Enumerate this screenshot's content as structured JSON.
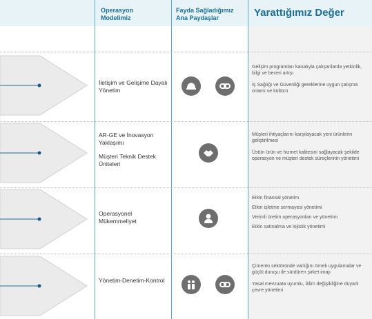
{
  "header": {
    "col_model": "Operasyon Modelimiz",
    "col_stakeholders": "Fayda Sağladığımız Ana Paydaşlar",
    "col_value": "Yarattığımız Değer"
  },
  "rows": [
    {
      "model": [
        "İletişim ve Gelişime Dayalı Yönetim"
      ],
      "icons": [
        "employee-helmet-icon",
        "chain-link-icon"
      ],
      "values": [
        "Gelişim programları kanalıyla çalışanlarda yetkinlik, bilgi ve beceri artışı",
        "İş Sağlığı ve Güvenliği gereklerine uygun çalışma ortamı ve kültürü"
      ]
    },
    {
      "model": [
        "AR-GE ve İnovasyon Yaklaşımı",
        "Müşteri Teknik Destek Üniteleri"
      ],
      "icons": [
        "handshake-icon"
      ],
      "values": [
        "Müşteri ihtiyaçlarını karşılayacak yeni ürünlerin geliştirilmesi",
        "Üstün ürün ve hizmet kalitesini sağlayacak şekilde operasyon ve müşteri destek süreçlerinin yönetimi"
      ]
    },
    {
      "model": [
        "Operasyonel Mükemmeliyet"
      ],
      "icons": [
        "investor-person-icon"
      ],
      "values": [
        "Etkin finansal yönetim",
        "Etkin işletme sermayesi yönetimi",
        "Verimli üretim operasyonları ve yönetimi",
        "Etkin satınalma ve lojistik yönetimi"
      ]
    },
    {
      "model": [
        "Yönetim-Denetim-Kontrol"
      ],
      "icons": [
        "community-people-icon",
        "chain-link-icon"
      ],
      "values": [
        "Çimento sektöründe varlığını örnek uygulamalar ve güçlü duruşu ile sürdüren şirket imajı",
        "Yasal mevzuata uyumlu, iklim değişikliğine duyarlı çevre yönetimi"
      ]
    }
  ]
}
